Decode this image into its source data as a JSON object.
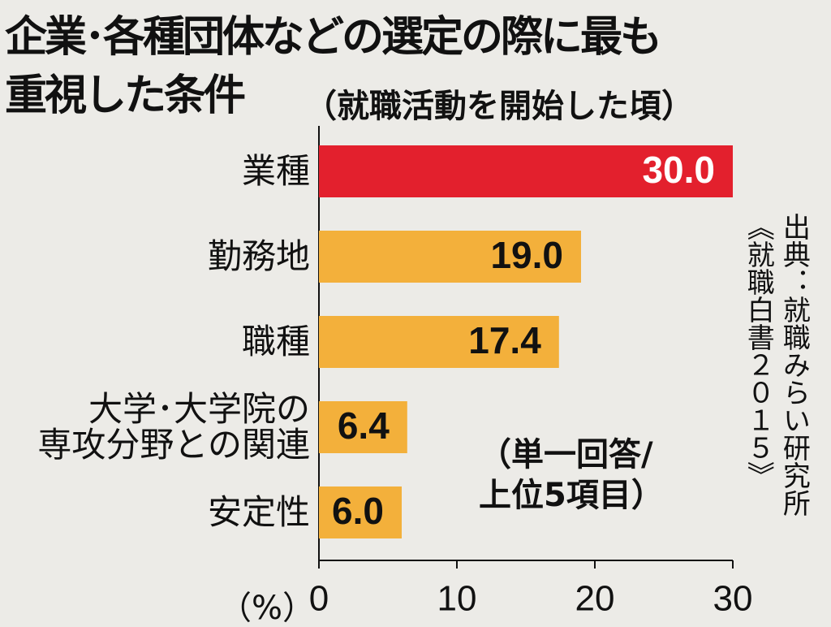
{
  "chart_data": {
    "type": "bar",
    "title": [
      "企業･各種団体などの選定の際に最も",
      "重視した条件"
    ],
    "subtitle": "（就職活動を開始した頃）",
    "categories": [
      "業種",
      "勤務地",
      "職種",
      "大学･大学院の\n専攻分野との関連",
      "安定性"
    ],
    "values": [
      30.0,
      19.0,
      17.4,
      6.4,
      6.0
    ],
    "value_labels": [
      "30.0",
      "19.0",
      "17.4",
      "6.4",
      "6.0"
    ],
    "colors": [
      "#e3202d",
      "#f3b03b",
      "#f3b03b",
      "#f3b03b",
      "#f3b03b"
    ],
    "value_label_colors": [
      "#ffffff",
      "#111111",
      "#111111",
      "#111111",
      "#111111"
    ],
    "xlim": [
      0,
      30
    ],
    "xticks": [
      0,
      10,
      20,
      30
    ],
    "x_label": "（%）",
    "note": "（単一回答/\n上位5項目）",
    "source": "出典：就職みらい研究所\n《就職白書２０１５》"
  }
}
